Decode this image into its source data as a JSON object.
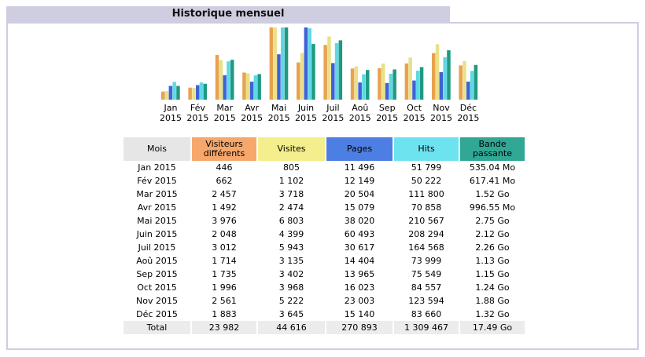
{
  "title": "Historique mensuel",
  "colors": {
    "visitors": "#e8a24e",
    "visits": "#e9e08a",
    "pages": "#3f62d8",
    "hits": "#5fd8e6",
    "bandwidth": "#1f9a80",
    "frame": "#cfcde0"
  },
  "chart_data": {
    "type": "bar",
    "categories": [
      "Jan 2015",
      "Fév 2015",
      "Mar 2015",
      "Avr 2015",
      "Mai 2015",
      "Juin 2015",
      "Juil 2015",
      "Aoû 2015",
      "Sep 2015",
      "Oct 2015",
      "Nov 2015",
      "Déc 2015"
    ],
    "month_labels": [
      {
        "m": "Jan",
        "y": "2015"
      },
      {
        "m": "Fév",
        "y": "2015"
      },
      {
        "m": "Mar",
        "y": "2015"
      },
      {
        "m": "Avr",
        "y": "2015"
      },
      {
        "m": "Mai",
        "y": "2015"
      },
      {
        "m": "Juin",
        "y": "2015"
      },
      {
        "m": "Juil",
        "y": "2015"
      },
      {
        "m": "Aoû",
        "y": "2015"
      },
      {
        "m": "Sep",
        "y": "2015"
      },
      {
        "m": "Oct",
        "y": "2015"
      },
      {
        "m": "Nov",
        "y": "2015"
      },
      {
        "m": "Déc",
        "y": "2015"
      }
    ],
    "series": [
      {
        "name": "Visiteurs différents",
        "key": "visitors",
        "values": [
          446,
          662,
          2457,
          1492,
          3976,
          2048,
          3012,
          1714,
          1735,
          1996,
          2561,
          1883
        ]
      },
      {
        "name": "Visites",
        "key": "visits",
        "values": [
          805,
          1102,
          3718,
          2474,
          6803,
          4399,
          5943,
          3135,
          3402,
          3968,
          5222,
          3645
        ]
      },
      {
        "name": "Pages",
        "key": "pages",
        "values": [
          11496,
          12149,
          20504,
          15079,
          38020,
          60493,
          30617,
          14404,
          13965,
          16023,
          23003,
          15140
        ]
      },
      {
        "name": "Hits",
        "key": "hits",
        "values": [
          51799,
          50222,
          111800,
          70858,
          210567,
          208294,
          164568,
          73999,
          75549,
          84557,
          123594,
          83660
        ]
      },
      {
        "name": "Bande passante",
        "key": "bandwidth",
        "values_mb": [
          535.04,
          617.41,
          1556,
          996.55,
          2816,
          2171,
          2314,
          1157,
          1178,
          1270,
          1925,
          1352
        ]
      }
    ]
  },
  "table": {
    "headers": {
      "mois": "Mois",
      "visitors": "Visiteurs différents",
      "visits": "Visites",
      "pages": "Pages",
      "hits": "Hits",
      "bandwidth": "Bande passante"
    },
    "rows": [
      {
        "mois": "Jan 2015",
        "visitors": "446",
        "visits": "805",
        "pages": "11 496",
        "hits": "51 799",
        "bandwidth": "535.04 Mo"
      },
      {
        "mois": "Fév 2015",
        "visitors": "662",
        "visits": "1 102",
        "pages": "12 149",
        "hits": "50 222",
        "bandwidth": "617.41 Mo"
      },
      {
        "mois": "Mar 2015",
        "visitors": "2 457",
        "visits": "3 718",
        "pages": "20 504",
        "hits": "111 800",
        "bandwidth": "1.52 Go"
      },
      {
        "mois": "Avr 2015",
        "visitors": "1 492",
        "visits": "2 474",
        "pages": "15 079",
        "hits": "70 858",
        "bandwidth": "996.55 Mo"
      },
      {
        "mois": "Mai 2015",
        "visitors": "3 976",
        "visits": "6 803",
        "pages": "38 020",
        "hits": "210 567",
        "bandwidth": "2.75 Go"
      },
      {
        "mois": "Juin 2015",
        "visitors": "2 048",
        "visits": "4 399",
        "pages": "60 493",
        "hits": "208 294",
        "bandwidth": "2.12 Go"
      },
      {
        "mois": "Juil 2015",
        "visitors": "3 012",
        "visits": "5 943",
        "pages": "30 617",
        "hits": "164 568",
        "bandwidth": "2.26 Go"
      },
      {
        "mois": "Aoû 2015",
        "visitors": "1 714",
        "visits": "3 135",
        "pages": "14 404",
        "hits": "73 999",
        "bandwidth": "1.13 Go"
      },
      {
        "mois": "Sep 2015",
        "visitors": "1 735",
        "visits": "3 402",
        "pages": "13 965",
        "hits": "75 549",
        "bandwidth": "1.15 Go"
      },
      {
        "mois": "Oct 2015",
        "visitors": "1 996",
        "visits": "3 968",
        "pages": "16 023",
        "hits": "84 557",
        "bandwidth": "1.24 Go"
      },
      {
        "mois": "Nov 2015",
        "visitors": "2 561",
        "visits": "5 222",
        "pages": "23 003",
        "hits": "123 594",
        "bandwidth": "1.88 Go"
      },
      {
        "mois": "Déc 2015",
        "visitors": "1 883",
        "visits": "3 645",
        "pages": "15 140",
        "hits": "83 660",
        "bandwidth": "1.32 Go"
      }
    ],
    "total": {
      "mois": "Total",
      "visitors": "23 982",
      "visits": "44 616",
      "pages": "270 893",
      "hits": "1 309 467",
      "bandwidth": "17.49 Go"
    }
  }
}
